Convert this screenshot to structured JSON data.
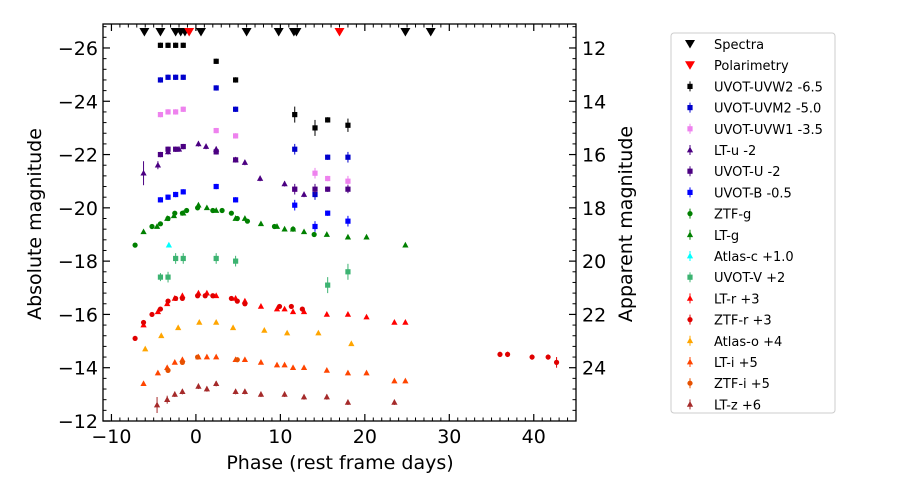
{
  "chart_data": {
    "type": "scatter",
    "xlabel": "Phase (rest frame days)",
    "ylabel": "Absolute magnitude",
    "y2label": "Apparent magnitude",
    "xlim": [
      -11,
      45
    ],
    "ylim": [
      -26.9,
      -12.0
    ],
    "x_ticks": [
      -10,
      0,
      10,
      20,
      30,
      40
    ],
    "x_tick_labels": [
      "−10",
      "0",
      "10",
      "20",
      "30",
      "40"
    ],
    "y_ticks": [
      -26,
      -24,
      -22,
      -20,
      -18,
      -16,
      -14,
      -12
    ],
    "y_tick_labels": [
      "−26",
      "−24",
      "−22",
      "−20",
      "−18",
      "−16",
      "−14",
      "−12"
    ],
    "y2_ticks": [
      12,
      14,
      16,
      18,
      20,
      22,
      24
    ],
    "y2_tick_labels": [
      "12",
      "14",
      "16",
      "18",
      "20",
      "22",
      "24"
    ],
    "y2_offset": 38.0,
    "markers": {
      "spectra": {
        "label": "Spectra",
        "color": "#000000",
        "y": -26.6,
        "x": [
          -6.1,
          -4.2,
          -2.4,
          -1.8,
          -1.3,
          0.6,
          6.0,
          9.8,
          11.6,
          11.9,
          24.8,
          27.8
        ]
      },
      "polarimetry": {
        "label": "Polarimetry",
        "color": "#ff0000",
        "y": -26.6,
        "x": [
          -0.8,
          17.0
        ]
      }
    },
    "series": [
      {
        "name": "UVOT-UVW2 -6.5",
        "color": "#000000",
        "marker": "square",
        "x": [
          -4.2,
          -3.3,
          -2.4,
          -1.5,
          2.4,
          4.7,
          11.7,
          14.1,
          15.6,
          18.0
        ],
        "y": [
          -26.1,
          -26.1,
          -26.1,
          -26.1,
          -25.5,
          -24.8,
          -23.5,
          -23.0,
          -23.3,
          -23.1
        ],
        "err": [
          0.1,
          0.1,
          0.1,
          0.1,
          0.1,
          0.1,
          0.3,
          0.3,
          0.1,
          0.25
        ]
      },
      {
        "name": "UVOT-UVM2 -5.0",
        "color": "#0000cc",
        "marker": "square",
        "x": [
          -4.2,
          -3.3,
          -2.4,
          -1.5,
          2.4,
          4.7,
          11.7,
          14.1,
          15.6,
          18.0
        ],
        "y": [
          -24.8,
          -24.9,
          -24.9,
          -24.9,
          -24.5,
          -23.7,
          -22.2,
          -20.5,
          -21.9,
          -21.9
        ],
        "err": [
          0.1,
          0.1,
          0.1,
          0.1,
          0.1,
          0.1,
          0.2,
          0.2,
          0.1,
          0.2
        ]
      },
      {
        "name": "UVOT-UVW1 -3.5",
        "color": "#ee82ee",
        "marker": "square",
        "x": [
          -4.2,
          -3.3,
          -2.4,
          -1.5,
          2.4,
          4.7,
          11.7,
          14.1,
          15.6,
          18.0
        ],
        "y": [
          -23.5,
          -23.6,
          -23.6,
          -23.7,
          -22.9,
          -22.7,
          -20.7,
          -21.3,
          -21.1,
          -21.0
        ],
        "err": [
          0.1,
          0.1,
          0.1,
          0.1,
          0.1,
          0.1,
          0.1,
          0.2,
          0.1,
          0.2
        ]
      },
      {
        "name": "LT-u -2",
        "color": "#4b0082",
        "marker": "triangle",
        "x": [
          -6.2,
          -4.5,
          -3.3,
          -2.0,
          0.3,
          1.2,
          2.4,
          4.7,
          5.8,
          7.6,
          10.5,
          12.8
        ],
        "y": [
          -21.3,
          -21.6,
          -22.1,
          -22.2,
          -22.4,
          -22.3,
          -22.2,
          -21.8,
          -21.7,
          -21.1,
          -20.9,
          -20.5
        ],
        "err": [
          0.45,
          0.15,
          0.1,
          0.1,
          0.1,
          0.1,
          0.1,
          0.1,
          0.1,
          0.1,
          0.1,
          0.1
        ]
      },
      {
        "name": "UVOT-U -2",
        "color": "#4b0082",
        "marker": "square",
        "x": [
          -4.2,
          -3.3,
          -2.4,
          -1.5,
          2.4,
          4.7,
          11.7,
          14.1,
          15.6,
          18.0
        ],
        "y": [
          -22.0,
          -22.2,
          -22.2,
          -22.3,
          -22.1,
          -21.8,
          -20.7,
          -20.7,
          -20.7,
          -20.7
        ],
        "err": [
          0.1,
          0.1,
          0.1,
          0.1,
          0.1,
          0.1,
          0.2,
          0.2,
          0.1,
          0.15
        ]
      },
      {
        "name": "UVOT-B -0.5",
        "color": "#0000ff",
        "marker": "square",
        "x": [
          -4.2,
          -3.3,
          -2.4,
          -1.5,
          2.4,
          4.7,
          11.7,
          14.1,
          15.6,
          18.0
        ],
        "y": [
          -20.3,
          -20.4,
          -20.5,
          -20.6,
          -20.8,
          -20.3,
          -20.1,
          -19.3,
          -19.8,
          -19.5
        ],
        "err": [
          0.1,
          0.1,
          0.1,
          0.1,
          0.1,
          0.1,
          0.2,
          0.2,
          0.1,
          0.2
        ]
      },
      {
        "name": "ZTF-g",
        "color": "#008000",
        "marker": "circle",
        "x": [
          -7.2,
          -5.2,
          -4.2,
          -3.3,
          -2.5,
          -1.6,
          -1.1,
          0.2,
          2.0,
          3.1,
          4.2,
          4.9,
          6.1,
          9.3,
          11.5,
          14.0
        ],
        "y": [
          -18.6,
          -19.3,
          -19.4,
          -19.6,
          -19.8,
          -19.8,
          -19.9,
          -20.0,
          -19.9,
          -19.9,
          -19.8,
          -19.6,
          -19.5,
          -19.3,
          -19.2,
          -19.0
        ],
        "err": [
          0.05,
          0.05,
          0.05,
          0.05,
          0.05,
          0.05,
          0.05,
          0.05,
          0.05,
          0.05,
          0.05,
          0.05,
          0.05,
          0.05,
          0.05,
          0.05
        ]
      },
      {
        "name": "LT-g",
        "color": "#008000",
        "marker": "triangle",
        "x": [
          -6.2,
          -4.6,
          -3.4,
          -2.6,
          -1.5,
          0.3,
          1.3,
          2.4,
          4.7,
          5.8,
          7.7,
          9.6,
          10.5,
          11.5,
          12.8,
          15.5,
          18.0,
          20.2,
          24.8
        ],
        "y": [
          -19.1,
          -19.3,
          -19.6,
          -19.7,
          -19.8,
          -20.1,
          -20.0,
          -19.9,
          -19.6,
          -19.6,
          -19.4,
          -19.3,
          -19.2,
          -19.2,
          -19.1,
          -19.0,
          -18.9,
          -18.9,
          -18.6
        ],
        "err": [
          0.05,
          0.05,
          0.05,
          0.05,
          0.05,
          0.05,
          0.05,
          0.05,
          0.05,
          0.05,
          0.05,
          0.05,
          0.05,
          0.05,
          0.05,
          0.05,
          0.05,
          0.05,
          0.05
        ]
      },
      {
        "name": "Atlas-c +1.0",
        "color": "#00ffff",
        "marker": "triangle",
        "x": [
          -3.2
        ],
        "y": [
          -18.6
        ],
        "err": [
          0.08
        ]
      },
      {
        "name": "UVOT-V +2",
        "color": "#3cb371",
        "marker": "square",
        "x": [
          -4.2,
          -3.3,
          -2.4,
          -1.5,
          2.4,
          4.7,
          15.6,
          18.0
        ],
        "y": [
          -17.4,
          -17.4,
          -18.1,
          -18.1,
          -18.1,
          -18.0,
          -17.1,
          -17.6
        ],
        "err": [
          0.15,
          0.2,
          0.2,
          0.2,
          0.2,
          0.2,
          0.3,
          0.3
        ]
      },
      {
        "name": "LT-r +3",
        "color": "#ff0000",
        "marker": "triangle",
        "x": [
          -6.2,
          -4.5,
          -3.4,
          -2.5,
          -1.6,
          0.3,
          1.3,
          2.4,
          4.7,
          5.8,
          7.7,
          9.6,
          10.5,
          11.5,
          12.8,
          15.5,
          18.0,
          20.2,
          23.5,
          24.8
        ],
        "y": [
          -15.6,
          -16.1,
          -16.4,
          -16.6,
          -16.7,
          -16.8,
          -16.8,
          -16.7,
          -16.6,
          -16.5,
          -16.3,
          -16.2,
          -16.2,
          -16.1,
          -16.1,
          -16.0,
          -16.0,
          -15.9,
          -15.7,
          -15.7
        ],
        "err": [
          0.05,
          0.05,
          0.05,
          0.05,
          0.05,
          0.05,
          0.05,
          0.05,
          0.05,
          0.05,
          0.05,
          0.05,
          0.05,
          0.05,
          0.05,
          0.05,
          0.05,
          0.05,
          0.05,
          0.05
        ]
      },
      {
        "name": "ZTF-r +3",
        "color": "#e00000",
        "marker": "circle",
        "x": [
          -7.2,
          -6.2,
          -5.2,
          -4.2,
          -3.3,
          -2.4,
          -1.6,
          0.2,
          1.1,
          2.0,
          4.2,
          4.9,
          5.8,
          9.9,
          11.3,
          12.6,
          36.0,
          36.9,
          39.8,
          41.7,
          42.7
        ],
        "y": [
          -15.1,
          -15.7,
          -16.0,
          -16.2,
          -16.5,
          -16.6,
          -16.6,
          -16.7,
          -16.7,
          -16.7,
          -16.6,
          -16.5,
          -16.4,
          -16.3,
          -16.3,
          -16.2,
          -14.5,
          -14.5,
          -14.4,
          -14.4,
          -14.2
        ],
        "err": [
          0.05,
          0.05,
          0.05,
          0.05,
          0.05,
          0.05,
          0.05,
          0.05,
          0.05,
          0.05,
          0.05,
          0.05,
          0.05,
          0.05,
          0.05,
          0.05,
          0.1,
          0.1,
          0.1,
          0.1,
          0.2
        ]
      },
      {
        "name": "Atlas-o +4",
        "color": "#ffa500",
        "marker": "triangle",
        "x": [
          -6.0,
          -4.1,
          -2.1,
          0.4,
          2.4,
          4.4,
          8.1,
          10.8,
          14.5,
          18.4
        ],
        "y": [
          -14.7,
          -15.2,
          -15.5,
          -15.7,
          -15.7,
          -15.5,
          -15.4,
          -15.3,
          -15.3,
          -14.9
        ],
        "err": [
          0.05,
          0.05,
          0.05,
          0.05,
          0.05,
          0.05,
          0.05,
          0.05,
          0.05,
          0.05
        ]
      },
      {
        "name": "LT-i +5",
        "color": "#ff4500",
        "marker": "triangle",
        "x": [
          -6.2,
          -4.5,
          -3.4,
          -2.5,
          -1.6,
          0.3,
          1.3,
          2.4,
          4.7,
          5.8,
          7.7,
          9.6,
          10.5,
          11.5,
          12.8,
          15.5,
          18.0,
          20.2,
          23.5,
          24.8
        ],
        "y": [
          -13.4,
          -13.8,
          -14.0,
          -14.2,
          -14.3,
          -14.4,
          -14.4,
          -14.4,
          -14.3,
          -14.3,
          -14.2,
          -14.1,
          -14.1,
          -14.0,
          -14.0,
          -13.9,
          -13.8,
          -13.8,
          -13.5,
          -13.5
        ],
        "err": [
          0.05,
          0.05,
          0.05,
          0.05,
          0.05,
          0.05,
          0.05,
          0.05,
          0.05,
          0.05,
          0.05,
          0.05,
          0.05,
          0.05,
          0.05,
          0.05,
          0.05,
          0.05,
          0.05,
          0.05
        ]
      },
      {
        "name": "ZTF-i +5",
        "color": "#e65100",
        "marker": "circle",
        "x": [
          -3.3,
          -1.6,
          0.2,
          4.9
        ],
        "y": [
          -13.9,
          -14.2,
          -14.4,
          -14.3
        ],
        "err": [
          0.05,
          0.05,
          0.05,
          0.05
        ]
      },
      {
        "name": "LT-z +6",
        "color": "#a52a2a",
        "marker": "triangle",
        "x": [
          -4.6,
          -3.4,
          -2.5,
          -1.6,
          0.3,
          1.3,
          2.4,
          4.7,
          5.8,
          7.7,
          10.5,
          12.8,
          15.5,
          18.0,
          23.5
        ],
        "y": [
          -12.6,
          -12.8,
          -13.0,
          -13.1,
          -13.3,
          -13.2,
          -13.4,
          -13.1,
          -13.1,
          -13.0,
          -13.0,
          -12.9,
          -12.9,
          -12.7,
          -12.7
        ],
        "err": [
          0.3,
          0.15,
          0.1,
          0.1,
          0.1,
          0.1,
          0.1,
          0.1,
          0.1,
          0.1,
          0.1,
          0.1,
          0.1,
          0.1,
          0.1
        ]
      }
    ]
  }
}
